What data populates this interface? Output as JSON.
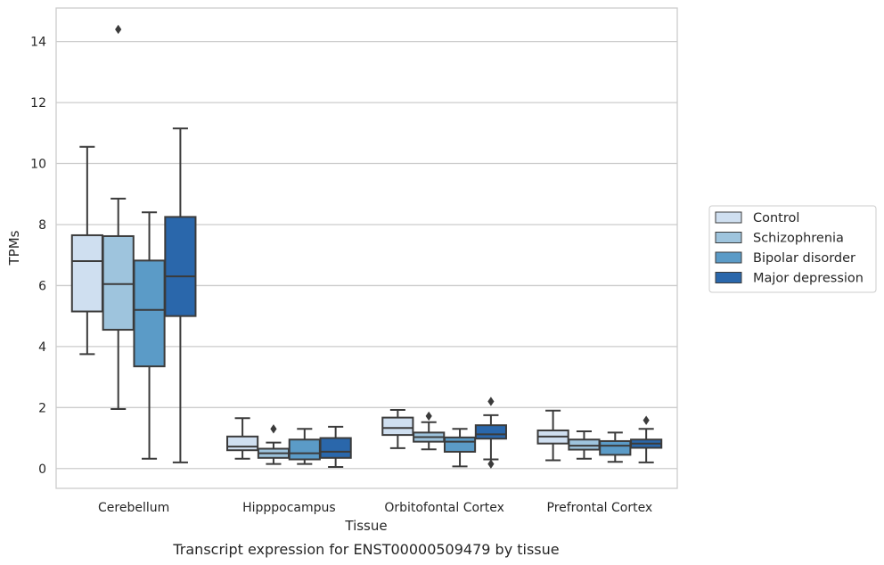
{
  "caption": "Transcript expression for ENST00000509479 by tissue",
  "chart_data": {
    "type": "box",
    "xlabel": "Tissue",
    "ylabel": "TPMs",
    "ylim": [
      -0.65,
      15.1
    ],
    "yticks": [
      0,
      2,
      4,
      6,
      8,
      10,
      12,
      14
    ],
    "grid": "horizontal",
    "legend_position": "right",
    "categories": [
      "Cerebellum",
      "Hipppocampus",
      "Orbitofontal Cortex",
      "Prefrontal Cortex"
    ],
    "series": [
      {
        "name": "Control",
        "color": "#cfdff0",
        "boxes": [
          {
            "whislo": 3.75,
            "q1": 5.15,
            "med": 6.8,
            "q3": 7.65,
            "whishi": 10.55,
            "fliers": []
          },
          {
            "whislo": 0.32,
            "q1": 0.6,
            "med": 0.72,
            "q3": 1.05,
            "whishi": 1.65,
            "fliers": []
          },
          {
            "whislo": 0.67,
            "q1": 1.1,
            "med": 1.33,
            "q3": 1.67,
            "whishi": 1.92,
            "fliers": []
          },
          {
            "whislo": 0.27,
            "q1": 0.82,
            "med": 1.05,
            "q3": 1.25,
            "whishi": 1.9,
            "fliers": []
          }
        ]
      },
      {
        "name": "Schizophrenia",
        "color": "#9ec4dd",
        "boxes": [
          {
            "whislo": 1.95,
            "q1": 4.55,
            "med": 6.05,
            "q3": 7.62,
            "whishi": 8.85,
            "fliers": [
              14.4
            ]
          },
          {
            "whislo": 0.15,
            "q1": 0.35,
            "med": 0.5,
            "q3": 0.65,
            "whishi": 0.85,
            "fliers": [
              1.3
            ]
          },
          {
            "whislo": 0.63,
            "q1": 0.88,
            "med": 1.03,
            "q3": 1.18,
            "whishi": 1.52,
            "fliers": [
              1.72
            ]
          },
          {
            "whislo": 0.32,
            "q1": 0.62,
            "med": 0.75,
            "q3": 0.95,
            "whishi": 1.22,
            "fliers": []
          }
        ]
      },
      {
        "name": "Bipolar disorder",
        "color": "#5b9bc7",
        "boxes": [
          {
            "whislo": 0.32,
            "q1": 3.35,
            "med": 5.2,
            "q3": 6.82,
            "whishi": 8.4,
            "fliers": []
          },
          {
            "whislo": 0.15,
            "q1": 0.3,
            "med": 0.5,
            "q3": 0.95,
            "whishi": 1.3,
            "fliers": []
          },
          {
            "whislo": 0.07,
            "q1": 0.55,
            "med": 0.88,
            "q3": 1.02,
            "whishi": 1.3,
            "fliers": []
          },
          {
            "whislo": 0.22,
            "q1": 0.45,
            "med": 0.75,
            "q3": 0.9,
            "whishi": 1.18,
            "fliers": []
          }
        ]
      },
      {
        "name": "Major depression",
        "color": "#2a67ab",
        "boxes": [
          {
            "whislo": 0.2,
            "q1": 5.0,
            "med": 6.3,
            "q3": 8.25,
            "whishi": 11.15,
            "fliers": []
          },
          {
            "whislo": 0.05,
            "q1": 0.35,
            "med": 0.55,
            "q3": 1.0,
            "whishi": 1.37,
            "fliers": []
          },
          {
            "whislo": 0.3,
            "q1": 0.98,
            "med": 1.12,
            "q3": 1.42,
            "whishi": 1.75,
            "fliers": [
              2.2,
              0.15
            ]
          },
          {
            "whislo": 0.2,
            "q1": 0.68,
            "med": 0.82,
            "q3": 0.95,
            "whishi": 1.3,
            "fliers": [
              1.58
            ]
          }
        ]
      }
    ]
  }
}
